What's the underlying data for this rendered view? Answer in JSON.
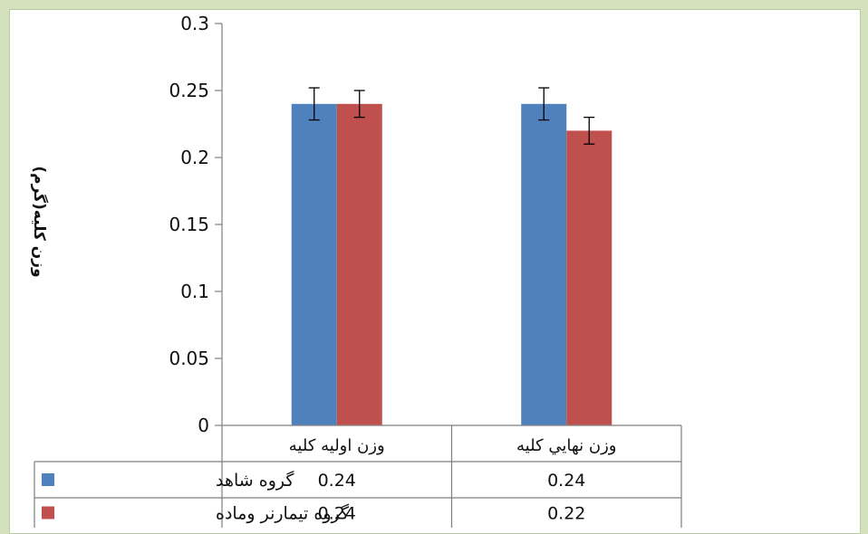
{
  "chart_data": {
    "type": "bar",
    "ylabel": "وزن كليه(گرم)",
    "ylim": [
      0,
      0.3
    ],
    "yticks": [
      "0",
      "0.05",
      "0.1",
      "0.15",
      "0.2",
      "0.25",
      "0.3"
    ],
    "ytick_values": [
      0,
      0.05,
      0.1,
      0.15,
      0.2,
      0.25,
      0.3
    ],
    "categories": [
      "وزن اوليه كليه",
      "وزن نهايي كليه"
    ],
    "series": [
      {
        "name": "گروه شاهد",
        "color": "#4f81bd",
        "values": [
          0.24,
          0.24
        ],
        "errors": [
          0.012,
          0.012
        ],
        "labels": [
          "0.24",
          "0.24"
        ]
      },
      {
        "name": "گروه تيمارنر وماده",
        "color": "#c0504d",
        "values": [
          0.24,
          0.22
        ],
        "errors": [
          0.01,
          0.01
        ],
        "labels": [
          "0.24",
          "0.22"
        ]
      }
    ],
    "grid": false,
    "legend": "data-table"
  }
}
